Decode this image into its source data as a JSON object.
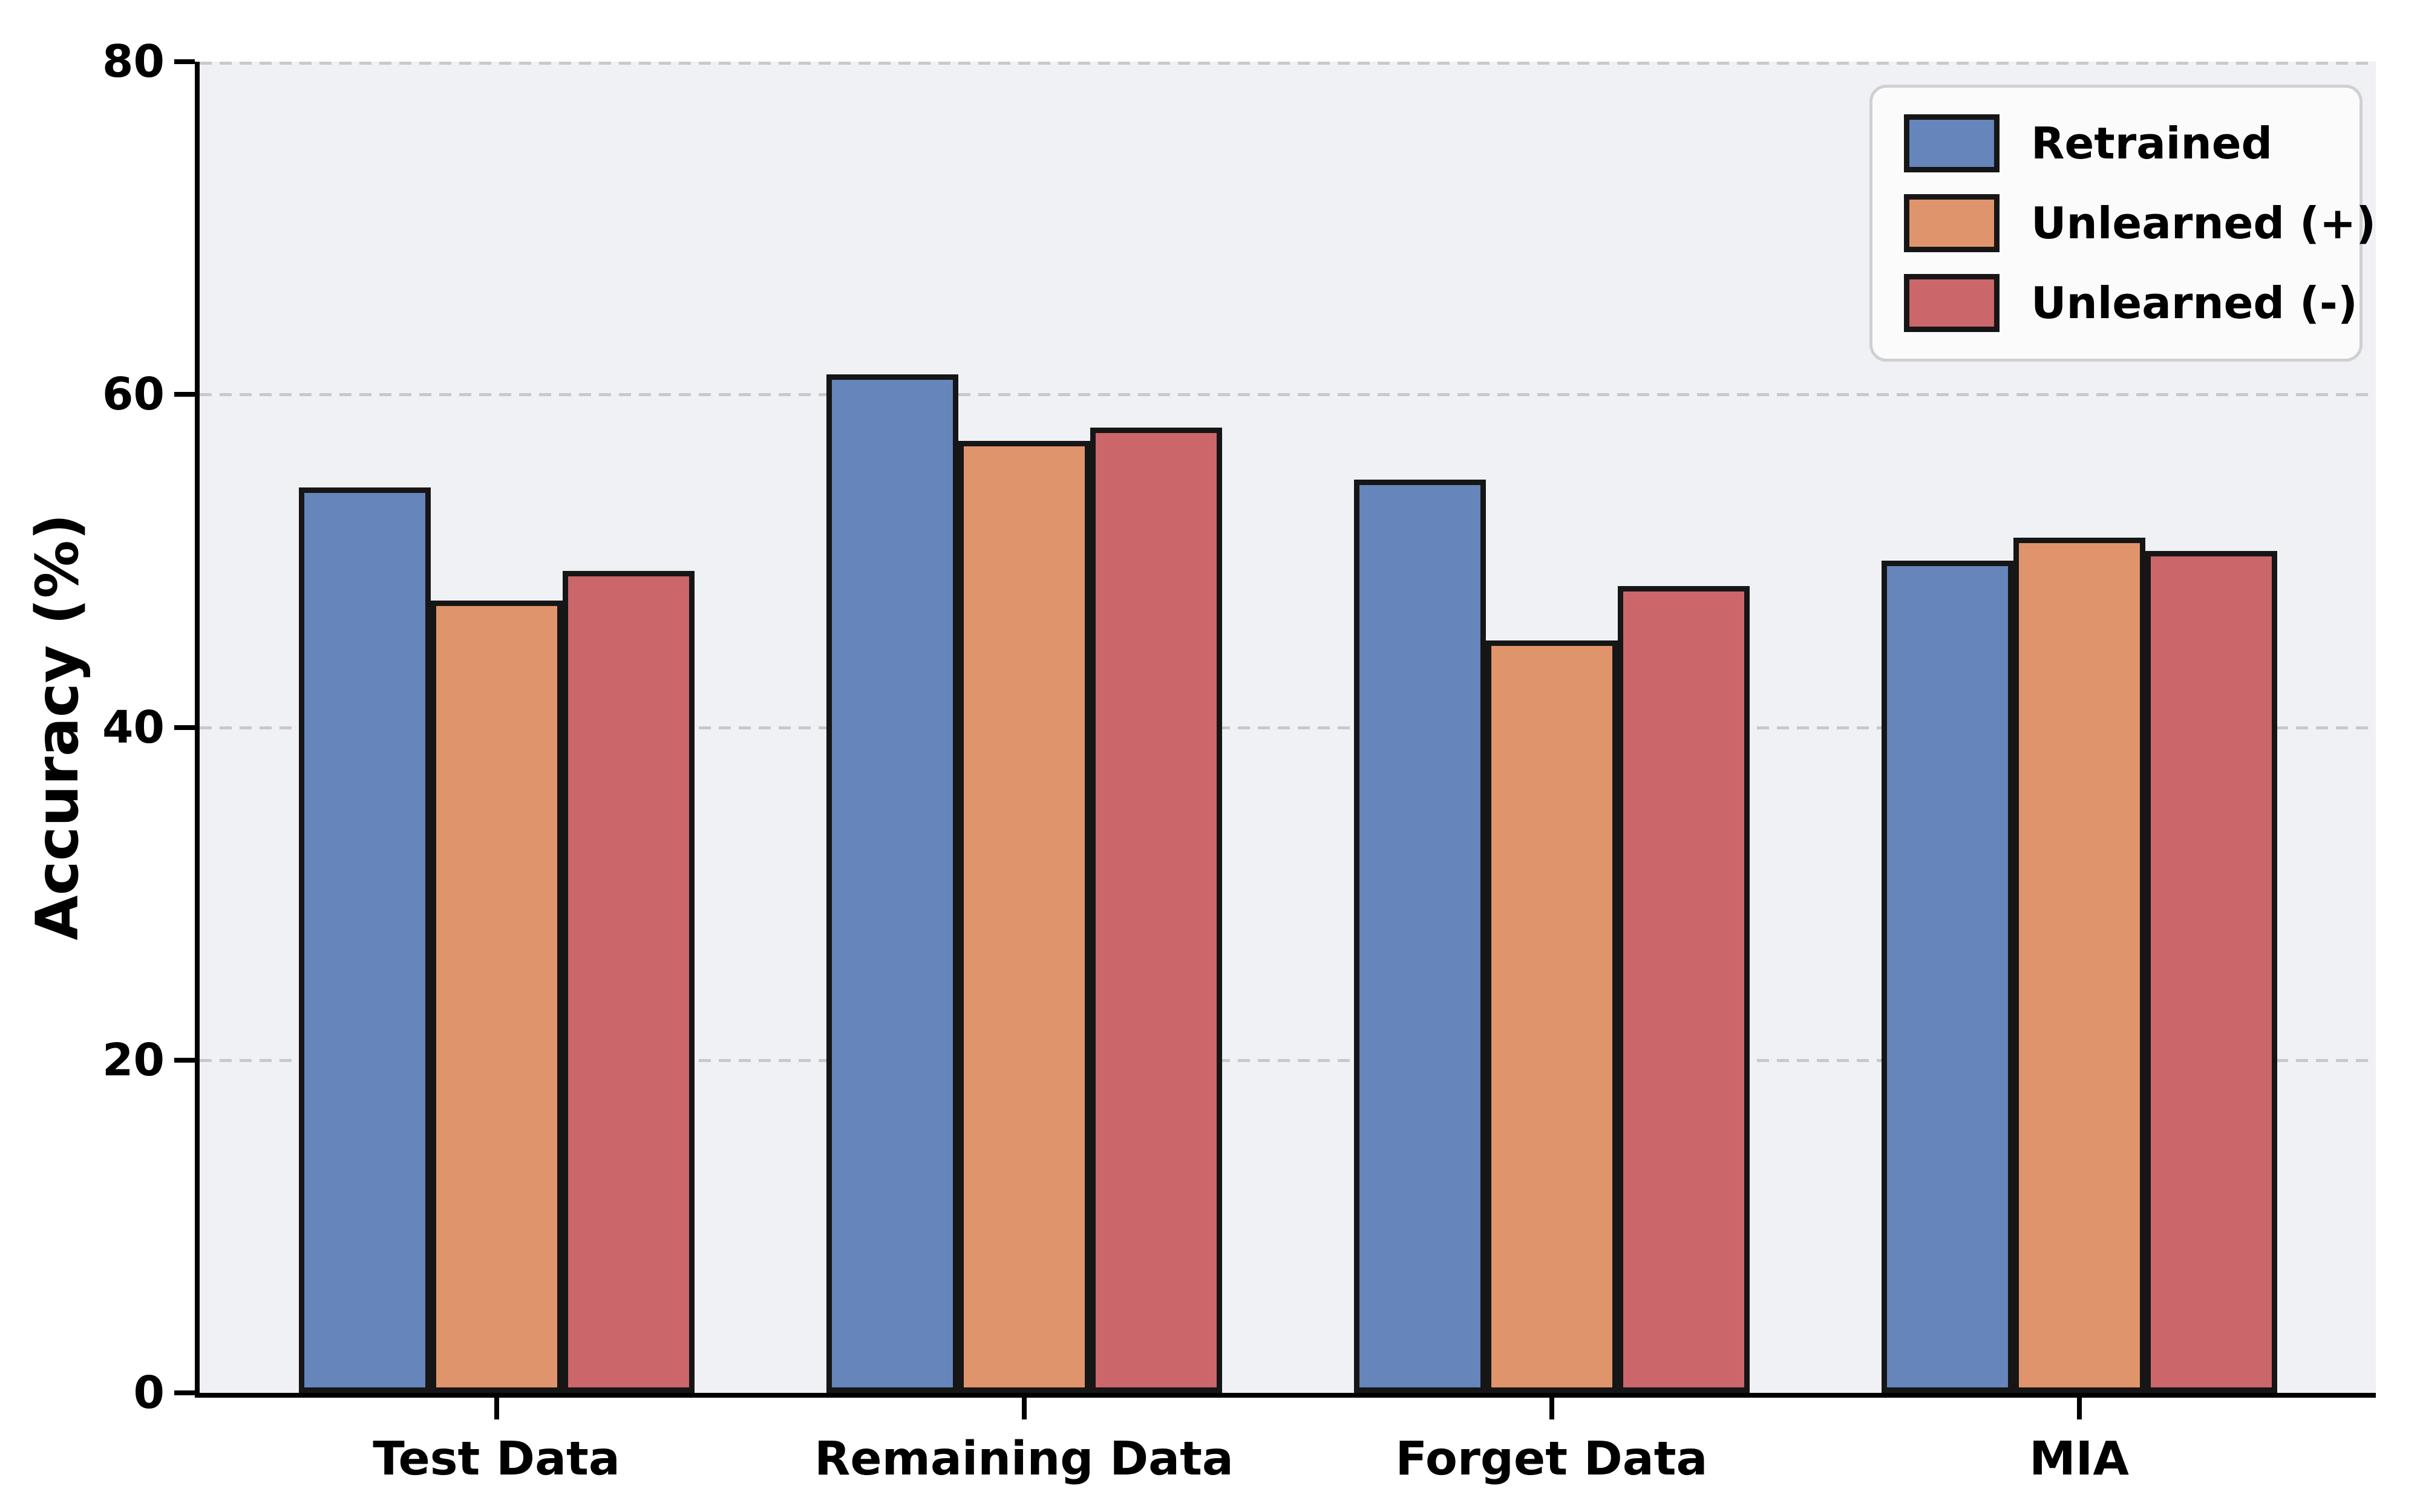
{
  "chart_data": {
    "type": "bar",
    "title": "",
    "xlabel": "",
    "ylabel": "Accuracy (%)",
    "categories": [
      "Test Data",
      "Remaining Data",
      "Forget Data",
      "MIA"
    ],
    "series": [
      {
        "name": "Retrained",
        "color": "#6585bb",
        "values": [
          54.4,
          61.2,
          54.9,
          50.0
        ]
      },
      {
        "name": "Unlearned (+)",
        "color": "#e0946b",
        "values": [
          47.6,
          57.2,
          45.2,
          51.4
        ]
      },
      {
        "name": "Unlearned (-)",
        "color": "#cb666b",
        "values": [
          49.4,
          58.0,
          48.5,
          50.6
        ]
      }
    ],
    "ylim": [
      0,
      80
    ],
    "yticks": [
      0,
      20,
      40,
      60,
      80
    ],
    "grid": "horizontal-dashed",
    "legend_position": "upper-right"
  },
  "colors": {
    "axes_background": "#eff1f5",
    "figure_background": "#ffffff",
    "grid_color": "#c9c9c9",
    "bar_edge_color": "#161616",
    "axis_text_color": "#000000",
    "legend_background": "#fbfbfc",
    "legend_border": "#d0d0d0"
  }
}
